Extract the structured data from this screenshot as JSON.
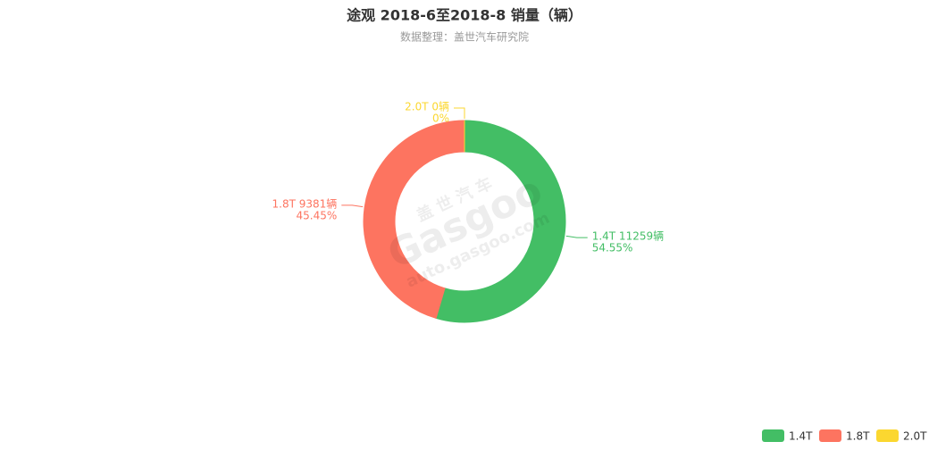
{
  "chart_data": {
    "type": "donut",
    "title": "途观 2018-6至2018-8 销量（辆）",
    "subtitle": "数据整理：盖世汽车研究院",
    "categories": [
      "1.4T",
      "1.8T",
      "2.0T"
    ],
    "values": [
      11259,
      9381,
      0
    ],
    "value_labels": [
      "1.4T 11259辆",
      "1.8T 9381辆",
      "2.0T 0辆"
    ],
    "percent_labels": [
      "54.55%",
      "45.45%",
      "0%"
    ],
    "colors": [
      "#43be65",
      "#fd7460",
      "#fbd730"
    ],
    "legend": "bottom-right",
    "watermark": [
      "盖 世 汽 车",
      "Gasgoo",
      "auto.gasgoo.com"
    ]
  }
}
